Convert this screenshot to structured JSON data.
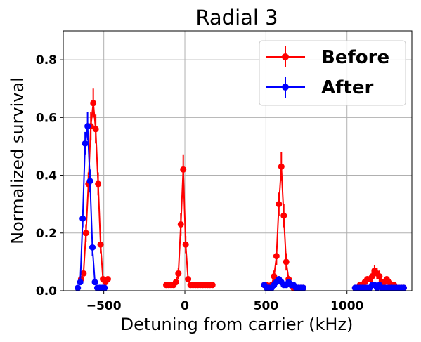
{
  "chart_data": {
    "type": "scatter",
    "title": "Radial 3",
    "xlabel": "Detuning from carrier (kHz)",
    "ylabel": "Normalized survival",
    "xlim": [
      -750,
      1400
    ],
    "ylim": [
      0,
      0.9
    ],
    "xticks": [
      -500,
      0,
      500,
      1000
    ],
    "xtick_labels": [
      "−500",
      "0",
      "500",
      "1000"
    ],
    "yticks": [
      0.0,
      0.2,
      0.4,
      0.6,
      0.8
    ],
    "ytick_labels": [
      "0.0",
      "0.2",
      "0.4",
      "0.6",
      "0.8"
    ],
    "grid": true,
    "legend_position": "top-right",
    "series": [
      {
        "name": "Before",
        "color": "#ff0000",
        "x": [
          -640,
          -625,
          -610,
          -595,
          -580,
          -565,
          -550,
          -535,
          -520,
          -505,
          -490,
          -475,
          -115,
          -100,
          -85,
          -70,
          -55,
          -40,
          -25,
          -10,
          5,
          20,
          35,
          50,
          65,
          80,
          95,
          110,
          125,
          140,
          155,
          170,
          490,
          505,
          520,
          535,
          550,
          565,
          580,
          595,
          610,
          625,
          640,
          655,
          670,
          685,
          700,
          715,
          730,
          1050,
          1065,
          1080,
          1095,
          1110,
          1125,
          1140,
          1155,
          1170,
          1185,
          1200,
          1215,
          1230,
          1245,
          1260,
          1275,
          1290,
          1305,
          1320,
          1335,
          1350
        ],
        "values": [
          0.04,
          0.06,
          0.2,
          0.37,
          0.57,
          0.65,
          0.56,
          0.37,
          0.16,
          0.04,
          0.03,
          0.04,
          0.02,
          0.02,
          0.02,
          0.02,
          0.03,
          0.06,
          0.23,
          0.42,
          0.16,
          0.04,
          0.02,
          0.02,
          0.02,
          0.02,
          0.02,
          0.02,
          0.02,
          0.02,
          0.02,
          0.02,
          0.02,
          0.02,
          0.01,
          0.02,
          0.05,
          0.12,
          0.3,
          0.43,
          0.26,
          0.1,
          0.04,
          0.02,
          0.01,
          0.01,
          0.01,
          0.01,
          0.01,
          0.01,
          0.01,
          0.02,
          0.02,
          0.03,
          0.04,
          0.04,
          0.05,
          0.07,
          0.06,
          0.05,
          0.03,
          0.03,
          0.04,
          0.03,
          0.02,
          0.02,
          0.01,
          0.01,
          0.01,
          0.01
        ],
        "errors": [
          0.01,
          0.01,
          0.03,
          0.04,
          0.05,
          0.05,
          0.05,
          0.04,
          0.03,
          0.01,
          0.01,
          0.01,
          0.01,
          0.01,
          0.01,
          0.01,
          0.01,
          0.02,
          0.04,
          0.05,
          0.03,
          0.01,
          0.01,
          0.01,
          0.01,
          0.01,
          0.01,
          0.01,
          0.01,
          0.01,
          0.01,
          0.01,
          0.01,
          0.01,
          0.01,
          0.01,
          0.02,
          0.03,
          0.04,
          0.05,
          0.04,
          0.03,
          0.01,
          0.01,
          0.01,
          0.01,
          0.01,
          0.01,
          0.01,
          0.01,
          0.01,
          0.01,
          0.01,
          0.01,
          0.01,
          0.01,
          0.02,
          0.02,
          0.02,
          0.02,
          0.01,
          0.01,
          0.01,
          0.01,
          0.01,
          0.01,
          0.01,
          0.01,
          0.01,
          0.01
        ]
      },
      {
        "name": "After",
        "color": "#0000ff",
        "x": [
          -660,
          -645,
          -630,
          -615,
          -600,
          -585,
          -570,
          -555,
          -540,
          -525,
          -510,
          -495,
          490,
          505,
          520,
          535,
          550,
          565,
          580,
          595,
          610,
          625,
          640,
          655,
          670,
          685,
          700,
          715,
          730,
          1050,
          1065,
          1080,
          1095,
          1110,
          1125,
          1140,
          1155,
          1170,
          1185,
          1200,
          1215,
          1230,
          1245,
          1260,
          1275,
          1290,
          1305,
          1320,
          1335,
          1350
        ],
        "values": [
          0.01,
          0.03,
          0.25,
          0.51,
          0.57,
          0.38,
          0.15,
          0.03,
          0.01,
          0.01,
          0.01,
          0.01,
          0.02,
          0.01,
          0.01,
          0.01,
          0.02,
          0.03,
          0.04,
          0.03,
          0.02,
          0.02,
          0.03,
          0.02,
          0.02,
          0.01,
          0.01,
          0.01,
          0.01,
          0.01,
          0.01,
          0.01,
          0.01,
          0.01,
          0.01,
          0.01,
          0.02,
          0.02,
          0.01,
          0.02,
          0.01,
          0.01,
          0.01,
          0.01,
          0.01,
          0.01,
          0.01,
          0.01,
          0.01,
          0.01
        ],
        "errors": [
          0.01,
          0.01,
          0.03,
          0.04,
          0.05,
          0.04,
          0.03,
          0.01,
          0.01,
          0.01,
          0.01,
          0.01,
          0.01,
          0.01,
          0.01,
          0.01,
          0.01,
          0.01,
          0.01,
          0.01,
          0.01,
          0.01,
          0.01,
          0.01,
          0.01,
          0.01,
          0.01,
          0.01,
          0.01,
          0.01,
          0.01,
          0.01,
          0.01,
          0.01,
          0.01,
          0.01,
          0.01,
          0.01,
          0.01,
          0.01,
          0.01,
          0.01,
          0.01,
          0.01,
          0.01,
          0.01,
          0.01,
          0.01,
          0.01,
          0.01
        ]
      }
    ]
  }
}
